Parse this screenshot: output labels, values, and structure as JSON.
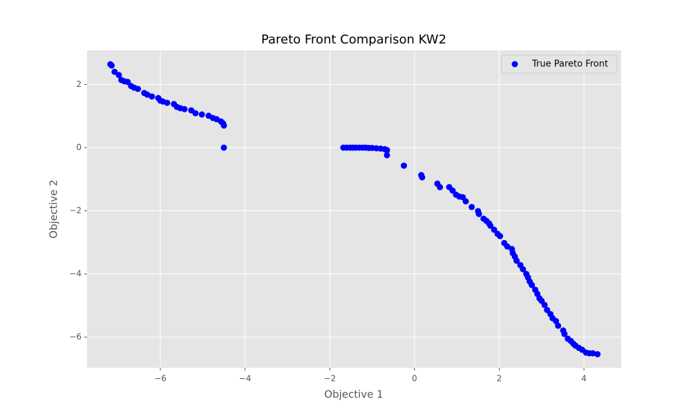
{
  "chart_data": {
    "type": "scatter",
    "title": "Pareto Front Comparison KW2",
    "x_label": "Objective 1",
    "y_label": "Objective 2",
    "x": [
      -7.18,
      -7.15,
      -7.08,
      -6.98,
      -6.92,
      -6.85,
      -6.77,
      -6.69,
      -6.62,
      -6.53,
      -6.38,
      -6.31,
      -6.2,
      -6.05,
      -6.0,
      -5.94,
      -5.84,
      -5.68,
      -5.61,
      -5.53,
      -5.43,
      -5.27,
      -5.17,
      -5.02,
      -4.86,
      -4.76,
      -4.67,
      -4.57,
      -4.52,
      -4.5,
      -4.5,
      -1.68,
      -1.6,
      -1.52,
      -1.45,
      -1.38,
      -1.3,
      -1.22,
      -1.15,
      -1.08,
      -1.0,
      -0.9,
      -0.8,
      -0.7,
      -0.65,
      -0.65,
      -0.25,
      0.16,
      0.18,
      0.54,
      0.6,
      0.82,
      0.9,
      0.98,
      1.06,
      1.14,
      1.21,
      1.35,
      1.5,
      1.52,
      1.63,
      1.7,
      1.76,
      1.79,
      1.88,
      1.96,
      2.02,
      2.12,
      2.19,
      2.3,
      2.32,
      2.37,
      2.41,
      2.5,
      2.56,
      2.64,
      2.68,
      2.72,
      2.77,
      2.85,
      2.9,
      2.95,
      3.0,
      3.07,
      3.13,
      3.21,
      3.26,
      3.34,
      3.39,
      3.51,
      3.54,
      3.62,
      3.69,
      3.75,
      3.8,
      3.88,
      3.96,
      4.05,
      4.13,
      4.21,
      4.32
    ],
    "series": [
      {
        "name": "True Pareto Front",
        "color": "#0000ff",
        "values": [
          2.64,
          2.6,
          2.4,
          2.3,
          2.14,
          2.1,
          2.08,
          1.95,
          1.9,
          1.86,
          1.73,
          1.68,
          1.62,
          1.57,
          1.49,
          1.46,
          1.42,
          1.38,
          1.29,
          1.25,
          1.22,
          1.18,
          1.09,
          1.05,
          1.01,
          0.94,
          0.9,
          0.83,
          0.77,
          0.7,
          0.0,
          0.0,
          0.0,
          0.0,
          0.0,
          0.0,
          0.0,
          0.0,
          0.0,
          -0.01,
          -0.01,
          -0.02,
          -0.03,
          -0.05,
          -0.08,
          -0.24,
          -0.57,
          -0.87,
          -0.94,
          -1.14,
          -1.25,
          -1.25,
          -1.36,
          -1.49,
          -1.55,
          -1.57,
          -1.7,
          -1.88,
          -2.01,
          -2.1,
          -2.25,
          -2.32,
          -2.4,
          -2.47,
          -2.6,
          -2.73,
          -2.8,
          -3.02,
          -3.13,
          -3.21,
          -3.34,
          -3.45,
          -3.58,
          -3.72,
          -3.85,
          -4.0,
          -4.11,
          -4.24,
          -4.35,
          -4.5,
          -4.63,
          -4.77,
          -4.85,
          -4.98,
          -5.14,
          -5.27,
          -5.4,
          -5.49,
          -5.64,
          -5.79,
          -5.9,
          -6.05,
          -6.12,
          -6.21,
          -6.27,
          -6.34,
          -6.4,
          -6.49,
          -6.51,
          -6.51,
          -6.54
        ]
      }
    ],
    "xlim": [
      -7.73,
      4.88
    ],
    "ylim": [
      -6.97,
      3.08
    ],
    "xticks": [
      {
        "value": -6,
        "label": "−6"
      },
      {
        "value": -4,
        "label": "−4"
      },
      {
        "value": -2,
        "label": "−2"
      },
      0,
      2,
      4
    ],
    "yticks": [
      {
        "value": -6,
        "label": "−6"
      },
      {
        "value": -4,
        "label": "−4"
      },
      {
        "value": -2,
        "label": "−2"
      },
      0,
      2
    ],
    "grid": true,
    "legend": "upper right"
  }
}
